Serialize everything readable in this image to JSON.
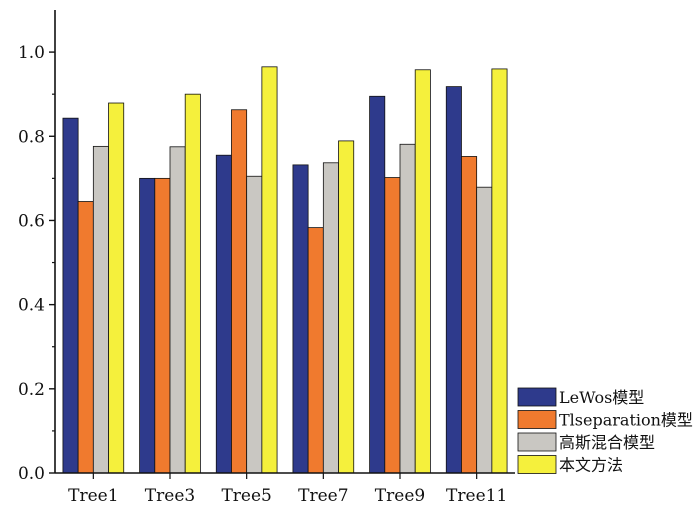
{
  "chart_data": {
    "type": "bar",
    "categories": [
      "Tree1",
      "Tree3",
      "Tree5",
      "Tree7",
      "Tree9",
      "Tree11"
    ],
    "series": [
      {
        "name": "LeWos模型",
        "color": "#2e3a8c",
        "values": [
          0.843,
          0.7,
          0.755,
          0.732,
          0.895,
          0.918
        ]
      },
      {
        "name": "Tlseparation模型",
        "color": "#f07a2e",
        "values": [
          0.645,
          0.7,
          0.863,
          0.583,
          0.702,
          0.752
        ]
      },
      {
        "name": "高斯混合模型",
        "color": "#c9c7c2",
        "values": [
          0.776,
          0.775,
          0.705,
          0.737,
          0.781,
          0.679
        ]
      },
      {
        "name": "本文方法",
        "color": "#f5f03c",
        "values": [
          0.879,
          0.9,
          0.965,
          0.789,
          0.958,
          0.96
        ]
      }
    ],
    "ylim": [
      0,
      1.1
    ],
    "yticks": [
      "0.0",
      "0.2",
      "0.4",
      "0.6",
      "0.8",
      "1.0"
    ],
    "title": "",
    "xlabel": "",
    "ylabel": "",
    "legend_position": "bottom-right",
    "grid": false
  }
}
